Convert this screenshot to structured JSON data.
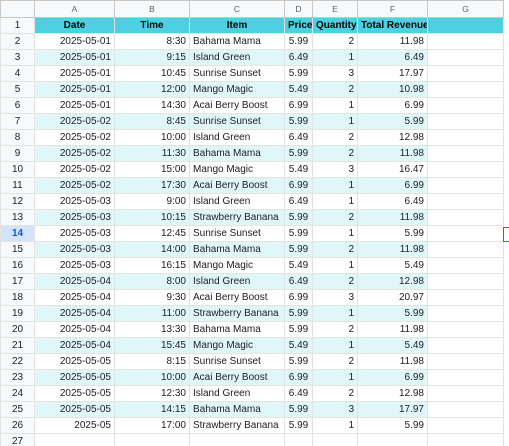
{
  "columns": [
    "A",
    "B",
    "C",
    "D",
    "E",
    "F",
    "G"
  ],
  "row_numbers": [
    "1",
    "2",
    "3",
    "4",
    "5",
    "6",
    "7",
    "8",
    "9",
    "10",
    "11",
    "12",
    "13",
    "14",
    "15",
    "16",
    "17",
    "18",
    "19",
    "20",
    "21",
    "22",
    "23",
    "24",
    "25",
    "26",
    "27"
  ],
  "active_row": "14",
  "headers": [
    "Date",
    "Time",
    "Item",
    "Price",
    "Quantity",
    "Total Revenue"
  ],
  "rows": [
    [
      "2025-05-01",
      "8:30",
      "Bahama Mama",
      "5.99",
      "2",
      "11.98"
    ],
    [
      "2025-05-01",
      "9:15",
      "Island Green",
      "6.49",
      "1",
      "6.49"
    ],
    [
      "2025-05-01",
      "10:45",
      "Sunrise Sunset",
      "5.99",
      "3",
      "17.97"
    ],
    [
      "2025-05-01",
      "12:00",
      "Mango Magic",
      "5.49",
      "2",
      "10.98"
    ],
    [
      "2025-05-01",
      "14:30",
      "Acai Berry Boost",
      "6.99",
      "1",
      "6.99"
    ],
    [
      "2025-05-02",
      "8:45",
      "Sunrise Sunset",
      "5.99",
      "1",
      "5.99"
    ],
    [
      "2025-05-02",
      "10:00",
      "Island Green",
      "6.49",
      "2",
      "12.98"
    ],
    [
      "2025-05-02",
      "11:30",
      "Bahama Mama",
      "5.99",
      "2",
      "11.98"
    ],
    [
      "2025-05-02",
      "15:00",
      "Mango Magic",
      "5.49",
      "3",
      "16.47"
    ],
    [
      "2025-05-02",
      "17:30",
      "Acai Berry Boost",
      "6.99",
      "1",
      "6.99"
    ],
    [
      "2025-05-03",
      "9:00",
      "Island Green",
      "6.49",
      "1",
      "6.49"
    ],
    [
      "2025-05-03",
      "10:15",
      "Strawberry Banana",
      "5.99",
      "2",
      "11.98"
    ],
    [
      "2025-05-03",
      "12:45",
      "Sunrise Sunset",
      "5.99",
      "1",
      "5.99"
    ],
    [
      "2025-05-03",
      "14:00",
      "Bahama Mama",
      "5.99",
      "2",
      "11.98"
    ],
    [
      "2025-05-03",
      "16:15",
      "Mango Magic",
      "5.49",
      "1",
      "5.49"
    ],
    [
      "2025-05-04",
      "8:00",
      "Island Green",
      "6.49",
      "2",
      "12.98"
    ],
    [
      "2025-05-04",
      "9:30",
      "Acai Berry Boost",
      "6.99",
      "3",
      "20.97"
    ],
    [
      "2025-05-04",
      "11:00",
      "Strawberry Banana",
      "5.99",
      "1",
      "5.99"
    ],
    [
      "2025-05-04",
      "13:30",
      "Bahama Mama",
      "5.99",
      "2",
      "11.98"
    ],
    [
      "2025-05-04",
      "15:45",
      "Mango Magic",
      "5.49",
      "1",
      "5.49"
    ],
    [
      "2025-05-05",
      "8:15",
      "Sunrise Sunset",
      "5.99",
      "2",
      "11.98"
    ],
    [
      "2025-05-05",
      "10:00",
      "Acai Berry Boost",
      "6.99",
      "1",
      "6.99"
    ],
    [
      "2025-05-05",
      "12:30",
      "Island Green",
      "6.49",
      "2",
      "12.98"
    ],
    [
      "2025-05-05",
      "14:15",
      "Bahama Mama",
      "5.99",
      "3",
      "17.97"
    ],
    [
      "2025-05",
      "17:00",
      "Strawberry Banana",
      "5.99",
      "1",
      "5.99"
    ]
  ],
  "colors": {
    "header_fill": "#4dd0e1",
    "band_fill": "#e0f7fa",
    "gridline": "#e2e3e3",
    "active_row_header": "#d3e3fd"
  }
}
